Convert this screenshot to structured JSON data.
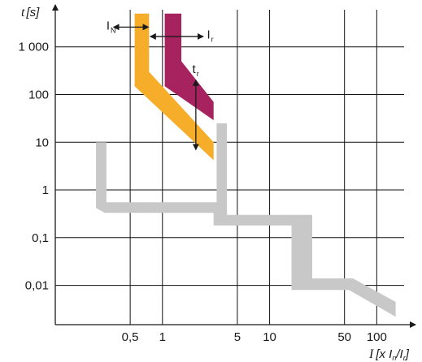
{
  "chart_data": {
    "type": "area",
    "title": "",
    "x_scale": "log",
    "y_scale": "log",
    "grid": true,
    "xlabel": "I",
    "xlabel_unit": "[x I",
    "xlabel_sub_n": "n",
    "xlabel_sep": "/I",
    "xlabel_sub_r": "r",
    "xlabel_close": "]",
    "ylabel": "t",
    "ylabel_unit": "[s]",
    "xlim": [
      0.1,
      180
    ],
    "ylim": [
      0.0015,
      6000
    ],
    "x_ticks": [
      {
        "value": 0.5,
        "label": "0,5"
      },
      {
        "value": 1,
        "label": "1"
      },
      {
        "value": 5,
        "label": "5"
      },
      {
        "value": 10,
        "label": "10"
      },
      {
        "value": 50,
        "label": "50"
      },
      {
        "value": 100,
        "label": "100"
      }
    ],
    "x_gridlines": [
      0.5,
      1,
      5,
      10,
      50,
      100
    ],
    "y_ticks": [
      {
        "value": 1000,
        "label": "1 000"
      },
      {
        "value": 100,
        "label": "100"
      },
      {
        "value": 10,
        "label": "10"
      },
      {
        "value": 1,
        "label": "1"
      },
      {
        "value": 0.1,
        "label": "0,1"
      },
      {
        "value": 0.01,
        "label": "0,01"
      }
    ],
    "series": [
      {
        "color": "#c8c8c8",
        "band": [
          [
            0.24,
            10
          ],
          [
            0.3,
            10
          ],
          [
            0.3,
            0.55
          ],
          [
            3.2,
            0.55
          ],
          [
            3.2,
            25
          ],
          [
            4,
            25
          ],
          [
            4,
            0.3
          ],
          [
            25,
            0.3
          ],
          [
            25,
            0.014
          ],
          [
            60,
            0.014
          ],
          [
            150,
            0.0045
          ],
          [
            150,
            0.0022
          ],
          [
            55,
            0.008
          ],
          [
            16,
            0.008
          ],
          [
            16,
            0.18
          ],
          [
            3,
            0.18
          ],
          [
            3,
            0.33
          ],
          [
            0.29,
            0.33
          ],
          [
            0.24,
            0.42
          ]
        ]
      },
      {
        "color": "#f5ad2a",
        "band": [
          [
            0.55,
            5000
          ],
          [
            0.75,
            5000
          ],
          [
            0.75,
            300
          ],
          [
            3,
            10
          ],
          [
            3,
            4.2
          ],
          [
            0.55,
            150
          ],
          [
            0.55,
            200
          ]
        ]
      },
      {
        "color": "#a62360",
        "band": [
          [
            1.05,
            5000
          ],
          [
            1.5,
            5000
          ],
          [
            1.5,
            500
          ],
          [
            3,
            70
          ],
          [
            3,
            29
          ],
          [
            1.05,
            150
          ],
          [
            1.05,
            200
          ]
        ]
      }
    ],
    "annotations": [
      {
        "text": "I",
        "sub": "N",
        "role": "nominal current label",
        "x": 0.3,
        "y": 2300
      },
      {
        "text": "I",
        "sub": "r",
        "role": "rated current label",
        "x": 2.6,
        "y": 1500
      },
      {
        "text": "t",
        "sub": "r",
        "role": "time delay label",
        "x": 1.9,
        "y": 280
      }
    ],
    "arrows": [
      {
        "role": "nominal current arrow",
        "x_from": 0.35,
        "x_to": 0.74,
        "y": 2600
      },
      {
        "role": "rated current arrow",
        "x_from": 0.77,
        "x_to": 2.4,
        "y": 1650
      },
      {
        "role": "time delay arrow",
        "x": 2.05,
        "y_from": 200,
        "y_to": 7
      }
    ]
  }
}
